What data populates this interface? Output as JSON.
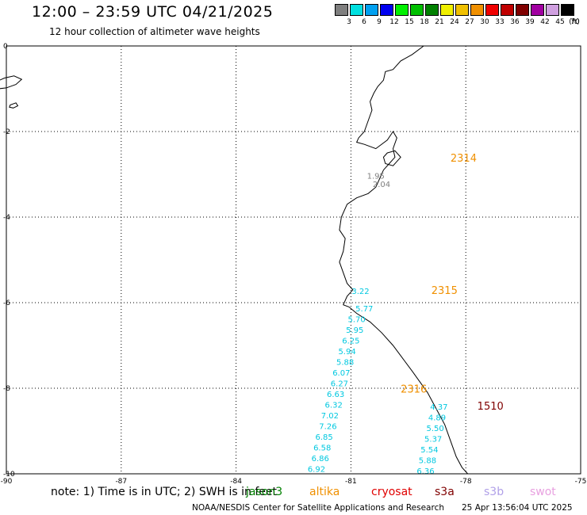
{
  "header": {
    "title": "12:00 – 23:59 UTC 04/21/2025",
    "subtitle": "12 hour collection of altimeter wave heights"
  },
  "colorbar": {
    "unit": "(ft)",
    "levels": [
      {
        "label": "3",
        "color": "#7f7f7f"
      },
      {
        "label": "6",
        "color": "#00e0e0"
      },
      {
        "label": "9",
        "color": "#00a0f0"
      },
      {
        "label": "12",
        "color": "#0000f0"
      },
      {
        "label": "15",
        "color": "#00f000"
      },
      {
        "label": "18",
        "color": "#00c000"
      },
      {
        "label": "21",
        "color": "#008000"
      },
      {
        "label": "24",
        "color": "#f0f000"
      },
      {
        "label": "27",
        "color": "#f0c000"
      },
      {
        "label": "30",
        "color": "#f09000"
      },
      {
        "label": "33",
        "color": "#f00000"
      },
      {
        "label": "36",
        "color": "#c00000"
      },
      {
        "label": "39",
        "color": "#800000"
      },
      {
        "label": "42",
        "color": "#a000a0"
      },
      {
        "label": "45",
        "color": "#d0a0e0"
      },
      {
        "label": "70",
        "color": "#000000"
      }
    ]
  },
  "axes": {
    "x_ticks": [
      "-90",
      "-87",
      "-84",
      "-81",
      "-78",
      "-75"
    ],
    "y_ticks": [
      "0",
      "-2",
      "-4",
      "-6",
      "-8",
      "-10"
    ],
    "x_values": [
      -90,
      -87,
      -84,
      -81,
      -78,
      -75
    ],
    "y_values": [
      0,
      -2,
      -4,
      -6,
      -8,
      -10
    ],
    "lon_range": [
      -90,
      -75
    ],
    "lat_range": [
      -10,
      0
    ],
    "grid": "dotted"
  },
  "passes": [
    {
      "id": "2314",
      "color": "#f09000",
      "lon": -78.4,
      "lat": -2.7
    },
    {
      "id": "2315",
      "color": "#f09000",
      "lon": -78.9,
      "lat": -5.8
    },
    {
      "id": "2316",
      "color": "#f09000",
      "lon": -79.7,
      "lat": -8.1
    },
    {
      "id": "1510",
      "color": "#800000",
      "lon": -77.7,
      "lat": -8.5
    }
  ],
  "wave_labels": [
    {
      "text": "1.95",
      "lon": -80.35,
      "lat": -3.1,
      "color": "#7f7f7f"
    },
    {
      "text": "2.04",
      "lon": -80.2,
      "lat": -3.3,
      "color": "#7f7f7f"
    },
    {
      "text": "3.22",
      "lon": -80.75,
      "lat": -5.8,
      "color": "#00c8e0"
    },
    {
      "text": "5.77",
      "lon": -80.65,
      "lat": -6.2,
      "color": "#00c8e0"
    },
    {
      "text": "5.70",
      "lon": -80.85,
      "lat": -6.45,
      "color": "#00c8e0"
    },
    {
      "text": "5.95",
      "lon": -80.9,
      "lat": -6.7,
      "color": "#00c8e0"
    },
    {
      "text": "6.25",
      "lon": -81.0,
      "lat": -6.95,
      "color": "#00c8e0"
    },
    {
      "text": "5.94",
      "lon": -81.1,
      "lat": -7.2,
      "color": "#00c8e0"
    },
    {
      "text": "5.88",
      "lon": -81.15,
      "lat": -7.45,
      "color": "#00c8e0"
    },
    {
      "text": "6.07",
      "lon": -81.25,
      "lat": -7.7,
      "color": "#00c8e0"
    },
    {
      "text": "6.27",
      "lon": -81.3,
      "lat": -7.95,
      "color": "#00c8e0"
    },
    {
      "text": "6.63",
      "lon": -81.4,
      "lat": -8.2,
      "color": "#00c8e0"
    },
    {
      "text": "6.32",
      "lon": -81.45,
      "lat": -8.45,
      "color": "#00c8e0"
    },
    {
      "text": "7.02",
      "lon": -81.55,
      "lat": -8.7,
      "color": "#00c8e0"
    },
    {
      "text": "7.26",
      "lon": -81.6,
      "lat": -8.95,
      "color": "#00c8e0"
    },
    {
      "text": "6.85",
      "lon": -81.7,
      "lat": -9.2,
      "color": "#00c8e0"
    },
    {
      "text": "6.58",
      "lon": -81.75,
      "lat": -9.45,
      "color": "#00c8e0"
    },
    {
      "text": "6.86",
      "lon": -81.8,
      "lat": -9.7,
      "color": "#00c8e0"
    },
    {
      "text": "6.92",
      "lon": -81.9,
      "lat": -9.95,
      "color": "#00c8e0"
    },
    {
      "text": "4.37",
      "lon": -78.7,
      "lat": -8.5,
      "color": "#00c8e0"
    },
    {
      "text": "4.89",
      "lon": -78.75,
      "lat": -8.75,
      "color": "#00c8e0"
    },
    {
      "text": "5.50",
      "lon": -78.8,
      "lat": -9.0,
      "color": "#00c8e0"
    },
    {
      "text": "5.37",
      "lon": -78.85,
      "lat": -9.25,
      "color": "#00c8e0"
    },
    {
      "text": "5.54",
      "lon": -78.95,
      "lat": -9.5,
      "color": "#00c8e0"
    },
    {
      "text": "5.88",
      "lon": -79.0,
      "lat": -9.75,
      "color": "#00c8e0"
    },
    {
      "text": "6.36",
      "lon": -79.05,
      "lat": -10.0,
      "color": "#00c8e0"
    }
  ],
  "coastline": [
    [
      -79.1,
      0.0
    ],
    [
      -79.4,
      -0.2
    ],
    [
      -79.7,
      -0.35
    ],
    [
      -79.9,
      -0.55
    ],
    [
      -80.1,
      -0.6
    ],
    [
      -80.15,
      -0.8
    ],
    [
      -80.3,
      -0.95
    ],
    [
      -80.4,
      -1.1
    ],
    [
      -80.5,
      -1.3
    ],
    [
      -80.45,
      -1.5
    ],
    [
      -80.55,
      -1.75
    ],
    [
      -80.65,
      -2.0
    ],
    [
      -80.8,
      -2.15
    ],
    [
      -80.85,
      -2.25
    ],
    [
      -80.65,
      -2.3
    ],
    [
      -80.35,
      -2.4
    ],
    [
      -80.05,
      -2.2
    ],
    [
      -79.9,
      -2.0
    ],
    [
      -79.8,
      -2.15
    ],
    [
      -79.9,
      -2.4
    ],
    [
      -79.85,
      -2.6
    ],
    [
      -80.0,
      -2.75
    ],
    [
      -80.15,
      -2.9
    ],
    [
      -80.25,
      -3.1
    ],
    [
      -80.35,
      -3.3
    ],
    [
      -80.55,
      -3.45
    ],
    [
      -80.85,
      -3.55
    ],
    [
      -81.1,
      -3.7
    ],
    [
      -81.25,
      -4.0
    ],
    [
      -81.3,
      -4.3
    ],
    [
      -81.15,
      -4.5
    ],
    [
      -81.2,
      -4.8
    ],
    [
      -81.3,
      -5.05
    ],
    [
      -81.2,
      -5.3
    ],
    [
      -81.1,
      -5.55
    ],
    [
      -80.95,
      -5.7
    ],
    [
      -81.1,
      -5.85
    ],
    [
      -81.2,
      -6.05
    ],
    [
      -81.05,
      -6.1
    ],
    [
      -80.85,
      -6.25
    ],
    [
      -80.5,
      -6.45
    ],
    [
      -80.2,
      -6.7
    ],
    [
      -79.9,
      -7.0
    ],
    [
      -79.65,
      -7.3
    ],
    [
      -79.4,
      -7.6
    ],
    [
      -79.2,
      -7.85
    ],
    [
      -79.0,
      -8.1
    ],
    [
      -78.85,
      -8.35
    ],
    [
      -78.7,
      -8.6
    ],
    [
      -78.55,
      -8.85
    ],
    [
      -78.45,
      -9.1
    ],
    [
      -78.35,
      -9.35
    ],
    [
      -78.25,
      -9.6
    ],
    [
      -78.1,
      -9.85
    ],
    [
      -77.95,
      -10.0
    ]
  ],
  "islands": [
    [
      [
        -90.3,
        -0.85
      ],
      [
        -90.05,
        -0.75
      ],
      [
        -89.8,
        -0.7
      ],
      [
        -89.6,
        -0.78
      ],
      [
        -89.75,
        -0.9
      ],
      [
        -90.0,
        -0.98
      ],
      [
        -90.2,
        -1.0
      ],
      [
        -90.3,
        -0.92
      ]
    ],
    [
      [
        -89.9,
        -1.38
      ],
      [
        -89.75,
        -1.33
      ],
      [
        -89.7,
        -1.4
      ],
      [
        -89.82,
        -1.45
      ],
      [
        -89.92,
        -1.43
      ]
    ],
    [
      [
        -80.05,
        -2.5
      ],
      [
        -79.85,
        -2.45
      ],
      [
        -79.7,
        -2.6
      ],
      [
        -79.9,
        -2.8
      ],
      [
        -80.1,
        -2.75
      ],
      [
        -80.15,
        -2.6
      ]
    ]
  ],
  "notes": [
    {
      "text": "note:  1) Time is in UTC;  2) SWH is in feet",
      "color": "#000000"
    },
    {
      "text": "jason3",
      "color": "#008000"
    },
    {
      "text": "altika",
      "color": "#f09000"
    },
    {
      "text": "cryosat",
      "color": "#e00000"
    },
    {
      "text": "s3a",
      "color": "#800000"
    },
    {
      "text": "s3b",
      "color": "#b0a0e8"
    },
    {
      "text": "swot",
      "color": "#e8a0e0"
    }
  ],
  "footer": {
    "credit": "NOAA/NESDIS Center for Satellite Applications and Research",
    "timestamp": "25 Apr 13:56:04 UTC 2025"
  }
}
